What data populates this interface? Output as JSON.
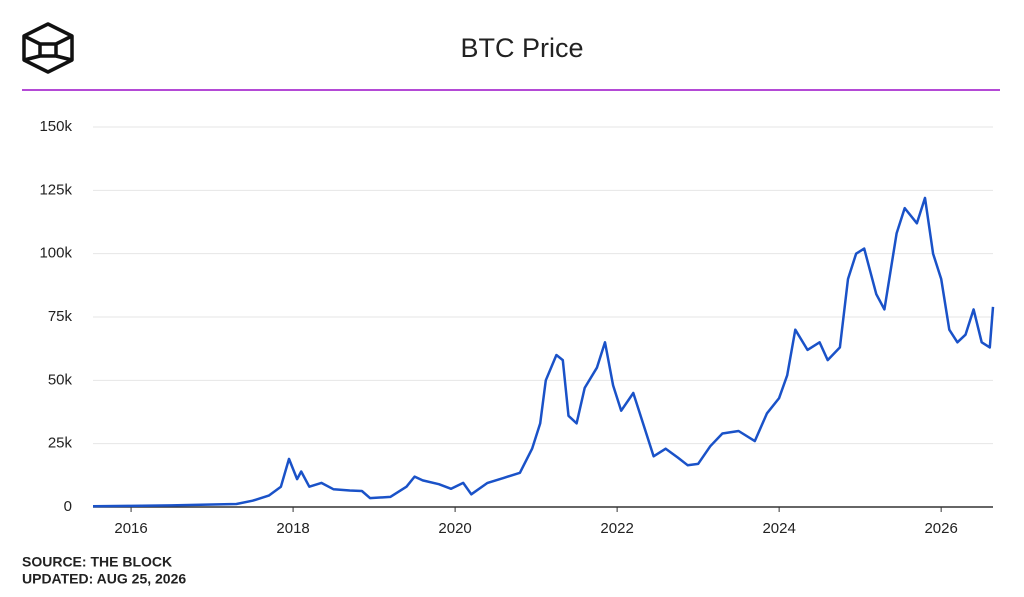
{
  "chart_data": {
    "type": "line",
    "title": "BTC Price",
    "source": "SOURCE: THE BLOCK",
    "updated": "UPDATED: AUG 25, 2026",
    "x": [
      2015.53,
      2016.0,
      2016.5,
      2017.0,
      2017.3,
      2017.5,
      2017.7,
      2017.85,
      2017.95,
      2018.05,
      2018.1,
      2018.2,
      2018.35,
      2018.5,
      2018.7,
      2018.85,
      2018.95,
      2019.2,
      2019.4,
      2019.5,
      2019.6,
      2019.8,
      2019.95,
      2020.1,
      2020.2,
      2020.4,
      2020.6,
      2020.8,
      2020.95,
      2021.05,
      2021.12,
      2021.25,
      2021.33,
      2021.4,
      2021.5,
      2021.6,
      2021.75,
      2021.85,
      2021.95,
      2022.05,
      2022.2,
      2022.35,
      2022.45,
      2022.6,
      2022.75,
      2022.87,
      2023.0,
      2023.15,
      2023.3,
      2023.5,
      2023.7,
      2023.85,
      2024.0,
      2024.1,
      2024.2,
      2024.35,
      2024.5,
      2024.6,
      2024.75,
      2024.85,
      2024.95,
      2025.05,
      2025.2,
      2025.3,
      2025.45,
      2025.55,
      2025.7,
      2025.8,
      2025.9,
      2026.0,
      2026.1,
      2026.2,
      2026.3,
      2026.4,
      2026.5,
      2026.6,
      2026.64
    ],
    "series": [
      {
        "name": "BTC",
        "color": "#1a52c8",
        "values": [
          300,
          430,
          650,
          1000,
          1200,
          2500,
          4500,
          8000,
          19000,
          11000,
          14000,
          8000,
          9500,
          7000,
          6500,
          6300,
          3500,
          4000,
          8000,
          12000,
          10500,
          9000,
          7200,
          9500,
          5000,
          9500,
          11500,
          13500,
          23000,
          33000,
          50000,
          60000,
          58000,
          36000,
          33000,
          47000,
          55000,
          65000,
          48000,
          38000,
          45000,
          30000,
          20000,
          23000,
          19500,
          16500,
          17000,
          24000,
          29000,
          30000,
          26000,
          37000,
          43000,
          52000,
          70000,
          62000,
          65000,
          58000,
          63000,
          90000,
          100000,
          102000,
          84000,
          78000,
          108000,
          118000,
          112000,
          122000,
          100000,
          90000,
          70000,
          65000,
          68000,
          78000,
          65000,
          63000,
          79000
        ]
      }
    ],
    "xlim": [
      2015.53,
      2026.64
    ],
    "xticks": [
      2016,
      2018,
      2020,
      2022,
      2024,
      2026
    ],
    "ylim": [
      0,
      150000
    ],
    "yticks": [
      0,
      {
        "value": 25000,
        "label": "25k"
      },
      {
        "value": 50000,
        "label": "50k"
      },
      {
        "value": 75000,
        "label": "75k"
      },
      {
        "value": 100000,
        "label": "100k"
      },
      {
        "value": 125000,
        "label": "125k"
      },
      {
        "value": 150000,
        "label": "150k"
      }
    ],
    "grid": true
  }
}
